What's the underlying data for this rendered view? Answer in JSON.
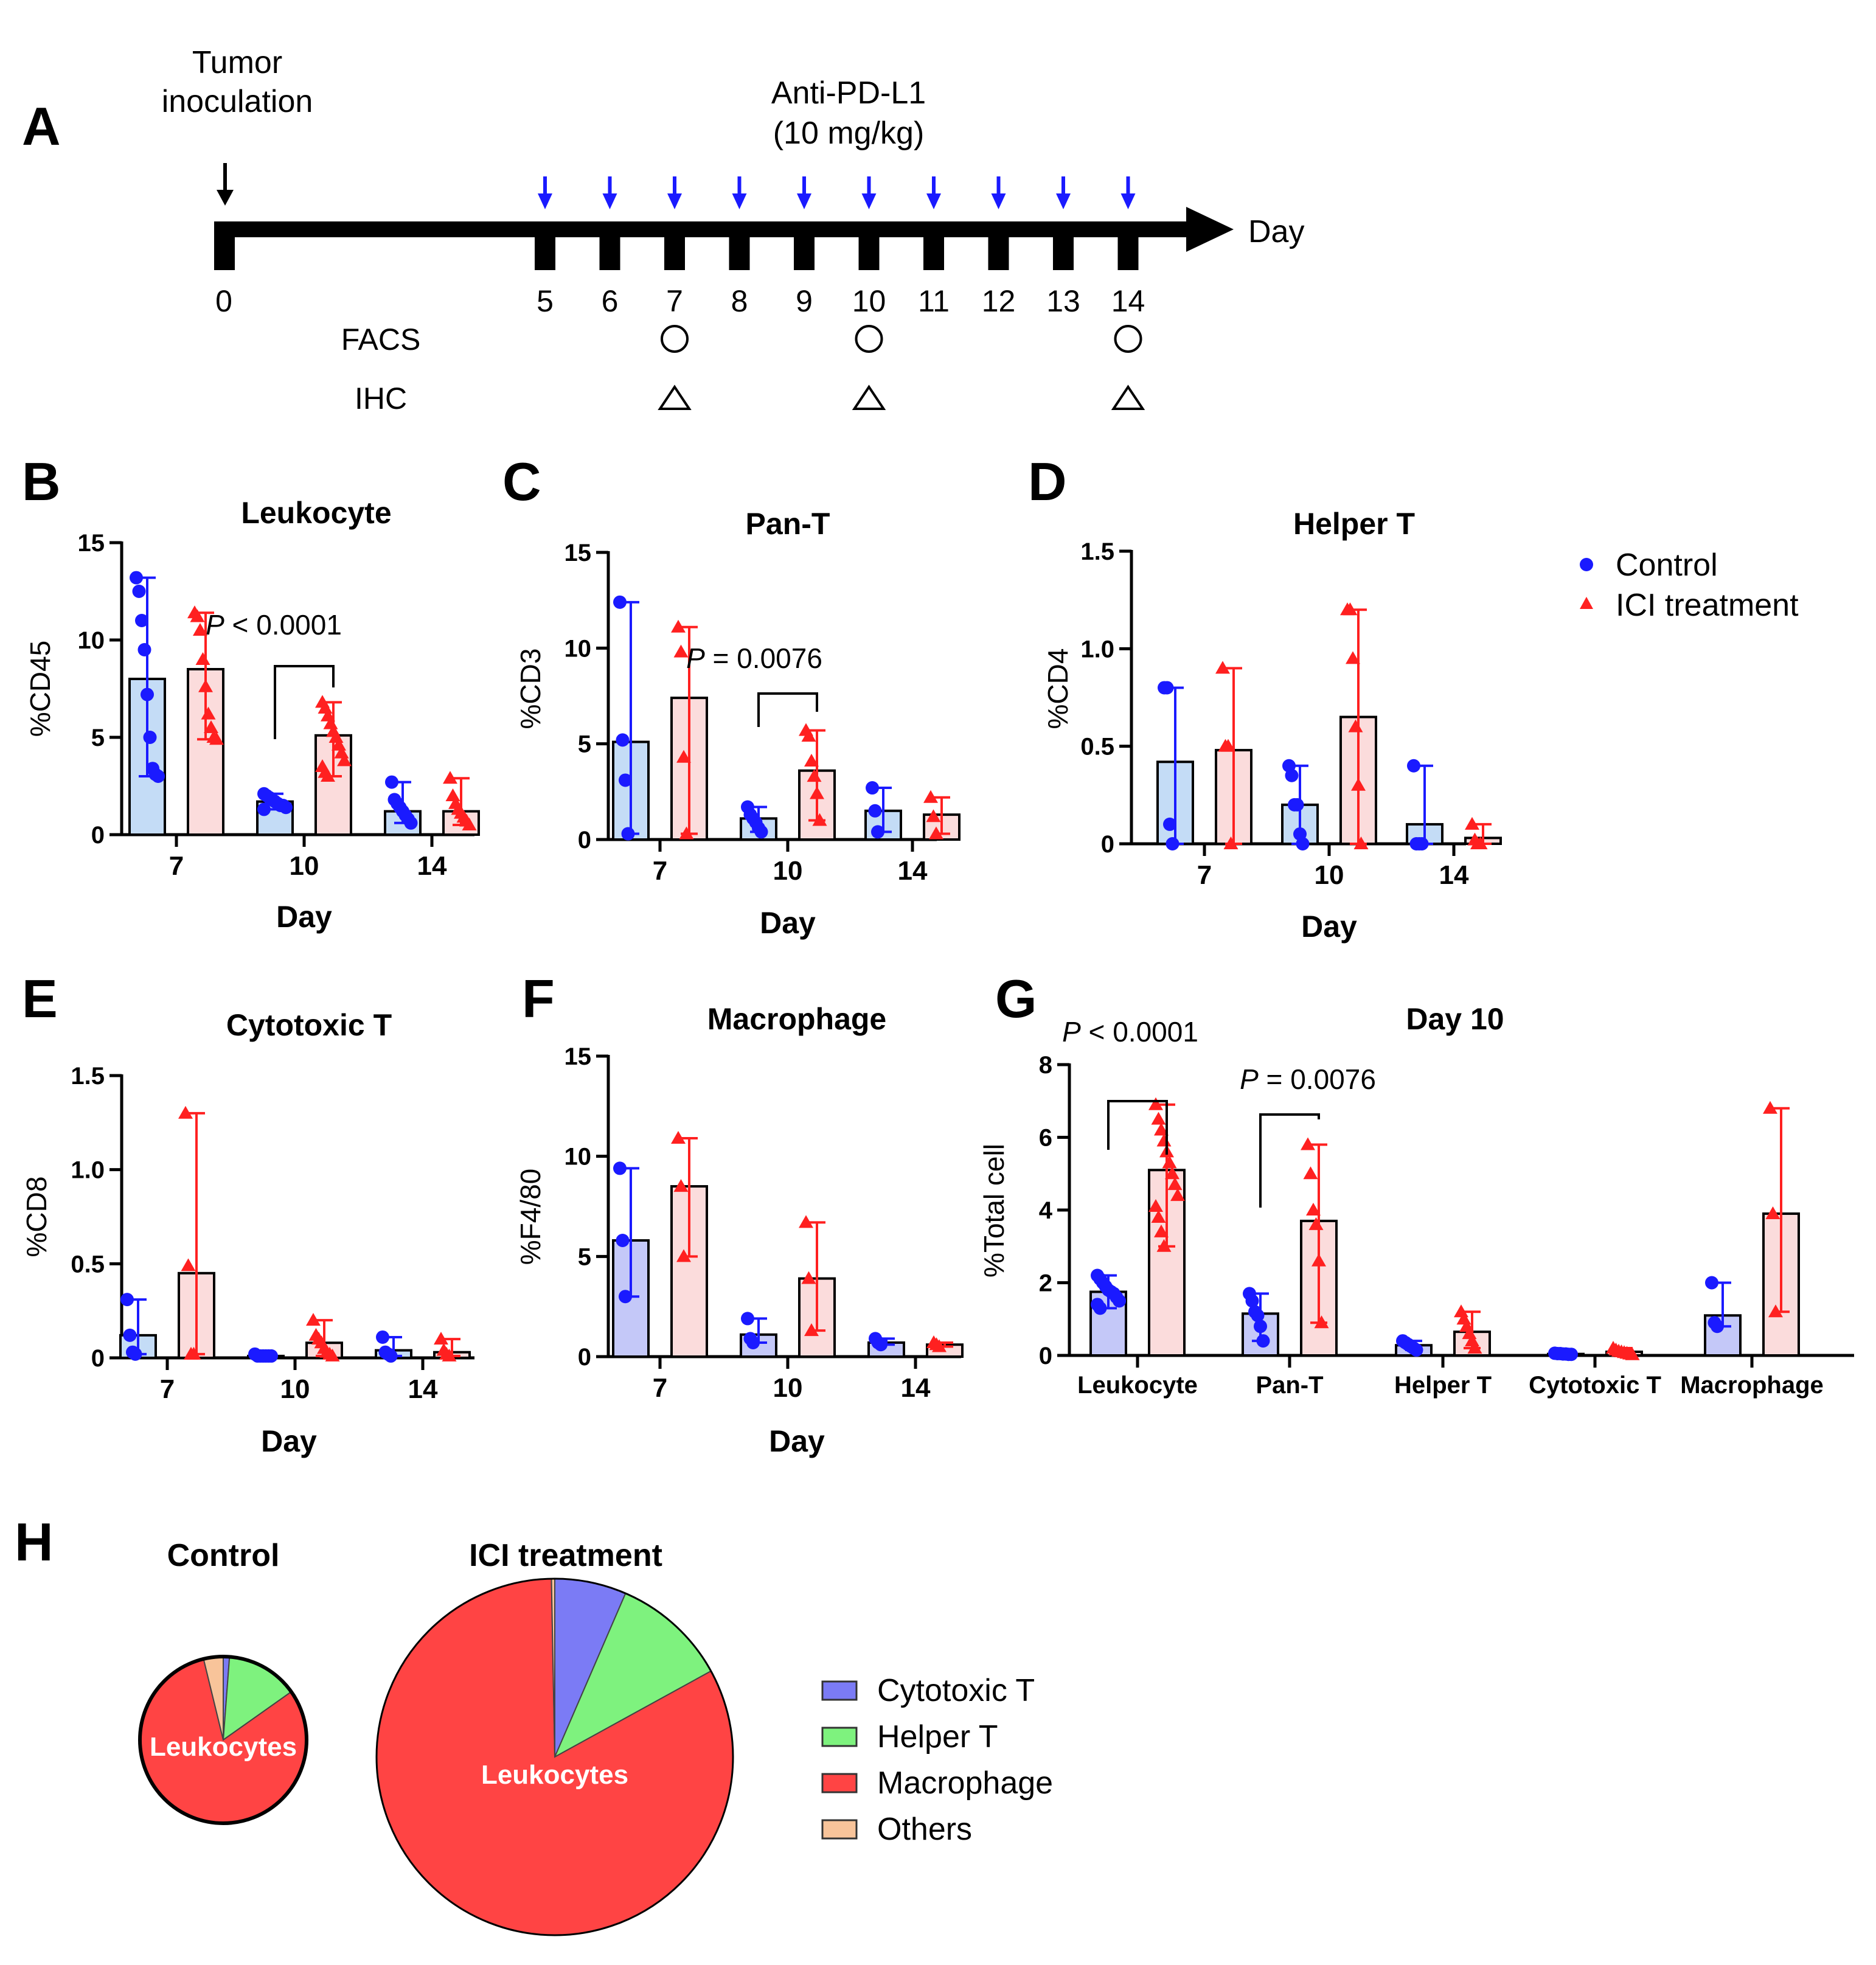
{
  "colors": {
    "control": "#1a1aff",
    "ici": "#ff2020",
    "control_fill": "#c4dcf6",
    "ici_fill": "#fbdcdc",
    "control_fill_alt": "#c4c8f8"
  },
  "panel_a": {
    "letter": "A",
    "inoculation_label_1": "Tumor",
    "inoculation_label_2": "inoculation",
    "drug_label_1": "Anti-PD-L1",
    "drug_label_2": "(10 mg/kg)",
    "axis_label": "Day",
    "day_zero": "0",
    "days": [
      "5",
      "6",
      "7",
      "8",
      "9",
      "10",
      "11",
      "12",
      "13",
      "14"
    ],
    "facs_label": "FACS",
    "ihc_label": "IHC",
    "sample_days": [
      "7",
      "10",
      "14"
    ]
  },
  "legend_bc": {
    "control": "Control",
    "ici": "ICI treatment"
  },
  "panel_h": {
    "letter": "H",
    "title_control": "Control",
    "title_ici": "ICI treatment",
    "center_label": "Leukocytes",
    "legend": [
      {
        "label": "Cytotoxic T",
        "color": "#7b7bf5"
      },
      {
        "label": "Helper T",
        "color": "#7ef27e"
      },
      {
        "label": "Macrophage",
        "color": "#ff4444"
      },
      {
        "label": "Others",
        "color": "#f8c49a"
      }
    ]
  },
  "chart_data": [
    {
      "id": "B",
      "type": "bar",
      "title": "Leukocyte",
      "ylabel": "%CD45",
      "xlabel": "Day",
      "categories": [
        "7",
        "10",
        "14"
      ],
      "ylim": [
        0,
        15
      ],
      "yticks": [
        "0",
        "5",
        "10",
        "15"
      ],
      "series": [
        {
          "name": "Control",
          "values": [
            8.0,
            1.7,
            1.2
          ]
        },
        {
          "name": "ICI treatment",
          "values": [
            8.5,
            5.1,
            1.2
          ]
        }
      ],
      "annotation": {
        "text": "< 0.0001",
        "prefix": "P",
        "category": 1
      },
      "points": [
        [
          [
            13.2,
            12.5,
            11.0,
            9.5,
            7.2,
            5.0,
            3.4,
            3.1,
            3.0
          ],
          [
            11.4,
            11.2,
            10.5,
            9.0,
            7.6,
            6.2,
            5.5,
            5.0,
            4.9
          ]
        ],
        [
          [
            2.1,
            2.0,
            1.9,
            1.8,
            1.7,
            1.6,
            1.5,
            1.5,
            1.4,
            1.3
          ],
          [
            6.8,
            6.5,
            6.1,
            5.7,
            5.3,
            5.0,
            4.6,
            4.2,
            3.8,
            3.5,
            3.2,
            3.0
          ]
        ],
        [
          [
            2.7,
            1.8,
            1.6,
            1.4,
            1.2,
            1.0,
            0.8,
            0.6
          ],
          [
            2.9,
            2.0,
            1.6,
            1.3,
            1.1,
            0.9,
            0.7,
            0.5
          ]
        ]
      ]
    },
    {
      "id": "C",
      "type": "bar",
      "title": "Pan-T",
      "ylabel": "%CD3",
      "xlabel": "Day",
      "categories": [
        "7",
        "10",
        "14"
      ],
      "ylim": [
        0,
        15
      ],
      "yticks": [
        "0",
        "5",
        "10",
        "15"
      ],
      "series": [
        {
          "name": "Control",
          "values": [
            5.1,
            1.1,
            1.5
          ]
        },
        {
          "name": "ICI treatment",
          "values": [
            7.4,
            3.6,
            1.3
          ]
        }
      ],
      "annotation": {
        "text": "= 0.0076",
        "prefix": "P",
        "category": 1
      },
      "points": [
        [
          [
            12.4,
            5.2,
            3.1,
            0.3
          ],
          [
            11.1,
            9.8,
            4.3,
            0.3
          ]
        ],
        [
          [
            1.7,
            1.3,
            1.1,
            0.9,
            0.6,
            0.4
          ],
          [
            5.7,
            5.4,
            4.1,
            3.3,
            2.4,
            1.0
          ]
        ],
        [
          [
            2.7,
            1.5,
            0.4
          ],
          [
            2.2,
            1.2,
            0.3
          ]
        ]
      ]
    },
    {
      "id": "D",
      "type": "bar",
      "title": "Helper T",
      "ylabel": "%CD4",
      "xlabel": "Day",
      "categories": [
        "7",
        "10",
        "14"
      ],
      "ylim": [
        0,
        1.5
      ],
      "yticks": [
        "0",
        "0.5",
        "1.0",
        "1.5"
      ],
      "series": [
        {
          "name": "Control",
          "values": [
            0.42,
            0.2,
            0.1
          ]
        },
        {
          "name": "ICI treatment",
          "values": [
            0.48,
            0.65,
            0.03
          ]
        }
      ],
      "points": [
        [
          [
            0.8,
            0.8,
            0.1,
            0.0
          ],
          [
            0.9,
            0.5,
            0.5,
            0.0
          ]
        ],
        [
          [
            0.4,
            0.35,
            0.2,
            0.2,
            0.05,
            0.0
          ],
          [
            1.2,
            1.2,
            0.95,
            0.6,
            0.3,
            0.0
          ]
        ],
        [
          [
            0.4,
            0.0,
            0.0,
            0.0
          ],
          [
            0.1,
            0.02,
            0.0,
            0.0
          ]
        ]
      ]
    },
    {
      "id": "E",
      "type": "bar",
      "title": "Cytotoxic T",
      "ylabel": "%CD8",
      "xlabel": "Day",
      "categories": [
        "7",
        "10",
        "14"
      ],
      "ylim": [
        0,
        1.5
      ],
      "yticks": [
        "0",
        "0.5",
        "1.0",
        "1.5"
      ],
      "series": [
        {
          "name": "Control",
          "values": [
            0.12,
            0.01,
            0.04
          ]
        },
        {
          "name": "ICI treatment",
          "values": [
            0.45,
            0.08,
            0.03
          ]
        }
      ],
      "points": [
        [
          [
            0.31,
            0.12,
            0.03,
            0.02
          ],
          [
            1.3,
            0.49,
            0.02,
            0.02
          ]
        ],
        [
          [
            0.02,
            0.01,
            0.01,
            0.01,
            0.01,
            0.01,
            0.01
          ],
          [
            0.2,
            0.12,
            0.1,
            0.08,
            0.05,
            0.03,
            0.02,
            0.01
          ]
        ],
        [
          [
            0.11,
            0.03,
            0.02,
            0.01
          ],
          [
            0.1,
            0.04,
            0.02,
            0.01
          ]
        ]
      ]
    },
    {
      "id": "F",
      "type": "bar",
      "title": "Macrophage",
      "ylabel": "%F4/80",
      "xlabel": "Day",
      "categories": [
        "7",
        "10",
        "14"
      ],
      "ylim": [
        0,
        15
      ],
      "yticks": [
        "0",
        "5",
        "10",
        "15"
      ],
      "series": [
        {
          "name": "Control",
          "values": [
            5.8,
            1.1,
            0.7
          ]
        },
        {
          "name": "ICI treatment",
          "values": [
            8.5,
            3.9,
            0.6
          ]
        }
      ],
      "points": [
        [
          [
            9.4,
            5.8,
            3.0
          ],
          [
            10.9,
            8.5,
            5.0
          ]
        ],
        [
          [
            1.9,
            0.9,
            0.7
          ],
          [
            6.7,
            3.9,
            1.3
          ]
        ],
        [
          [
            0.9,
            0.7,
            0.6
          ],
          [
            0.7,
            0.6,
            0.5
          ]
        ]
      ]
    },
    {
      "id": "G",
      "type": "bar",
      "title": "Day 10",
      "ylabel": "%Total cell",
      "xlabel": "",
      "categories": [
        "Leukocyte",
        "Pan-T",
        "Helper T",
        "Cytotoxic T",
        "Macrophage"
      ],
      "ylim": [
        0,
        8
      ],
      "yticks": [
        "0",
        "2",
        "4",
        "6",
        "8"
      ],
      "series": [
        {
          "name": "Control",
          "values": [
            1.75,
            1.15,
            0.28,
            0.04,
            1.1
          ]
        },
        {
          "name": "ICI treatment",
          "values": [
            5.1,
            3.7,
            0.65,
            0.1,
            3.9
          ]
        }
      ],
      "annotations": [
        {
          "text": "< 0.0001",
          "prefix": "P",
          "category": 0
        },
        {
          "text": "= 0.0076",
          "prefix": "P",
          "category": 1
        }
      ],
      "points": [
        [
          [
            2.2,
            2.1,
            2.0,
            1.9,
            1.8,
            1.75,
            1.7,
            1.6,
            1.5,
            1.4,
            1.3
          ],
          [
            6.9,
            6.5,
            6.2,
            5.9,
            5.6,
            5.3,
            5.0,
            4.7,
            4.4,
            4.1,
            3.8,
            3.4,
            3.0
          ]
        ],
        [
          [
            1.7,
            1.5,
            1.2,
            1.1,
            0.8,
            0.4
          ],
          [
            5.8,
            5.0,
            4.0,
            3.6,
            2.6,
            0.9
          ]
        ],
        [
          [
            0.4,
            0.35,
            0.3,
            0.25,
            0.2,
            0.15
          ],
          [
            1.2,
            1.0,
            0.8,
            0.6,
            0.4,
            0.2
          ]
        ],
        [
          [
            0.06,
            0.05,
            0.05,
            0.04,
            0.04,
            0.03,
            0.03
          ],
          [
            0.2,
            0.15,
            0.12,
            0.1,
            0.08,
            0.06,
            0.04,
            0.02
          ]
        ],
        [
          [
            2.0,
            0.9,
            0.8
          ],
          [
            6.8,
            3.9,
            1.2
          ]
        ]
      ]
    },
    {
      "id": "H-control",
      "type": "pie",
      "title": "Control",
      "center_label": "Leukocytes",
      "slices": [
        {
          "label": "Cytotoxic T",
          "value": 0.012
        },
        {
          "label": "Helper T",
          "value": 0.14
        },
        {
          "label": "Macrophage",
          "value": 0.81
        },
        {
          "label": "Others",
          "value": 0.038
        }
      ]
    },
    {
      "id": "H-ici",
      "type": "pie",
      "title": "ICI treatment",
      "center_label": "Leukocytes",
      "slices": [
        {
          "label": "Cytotoxic T",
          "value": 0.065
        },
        {
          "label": "Helper T",
          "value": 0.105
        },
        {
          "label": "Macrophage",
          "value": 0.827
        },
        {
          "label": "Others",
          "value": 0.003
        }
      ]
    }
  ]
}
